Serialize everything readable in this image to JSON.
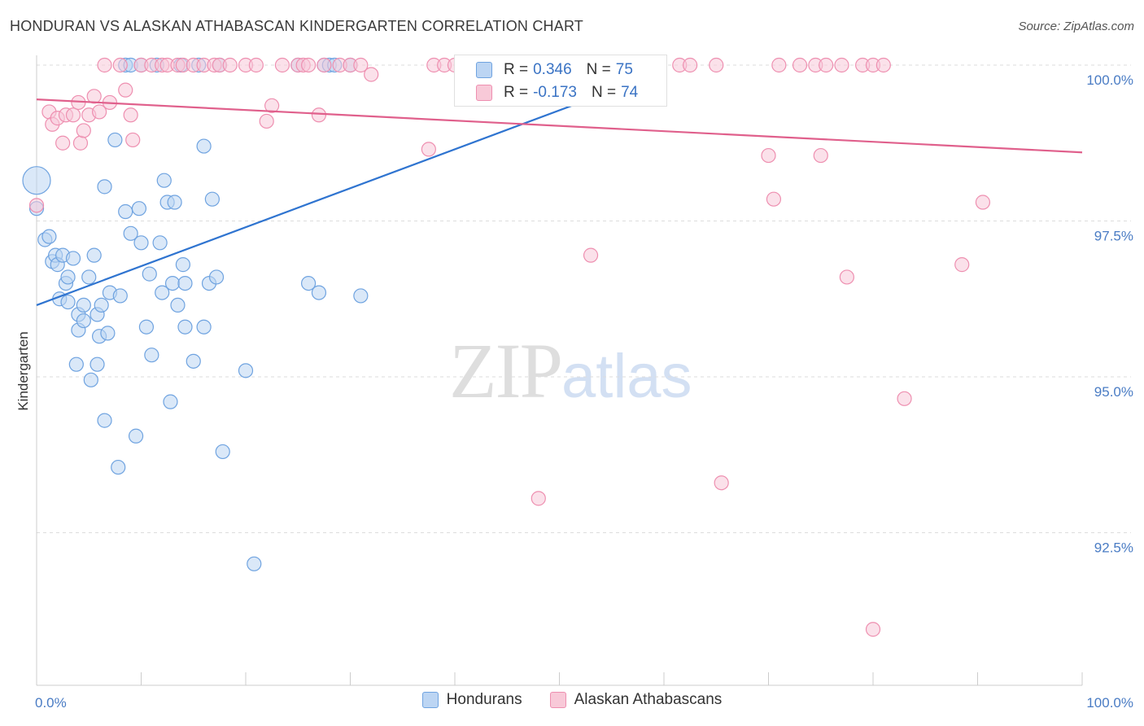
{
  "title": "HONDURAN VS ALASKAN ATHABASCAN KINDERGARTEN CORRELATION CHART",
  "source": "Source: ZipAtlas.com",
  "watermark": {
    "zip": "ZIP",
    "atlas": "atlas"
  },
  "colors": {
    "blue": "#6fa3e0",
    "blue_fill": "#bcd5f3",
    "pink": "#ee8fb0",
    "pink_fill": "#f8c9d8",
    "blue_line": "#2f74d0",
    "pink_line": "#e0608c",
    "grid": "#dddddd",
    "tick": "#4a7cc4"
  },
  "legend": {
    "r_label": "R =",
    "n_label": "N =",
    "series": [
      {
        "r": "0.346",
        "n": "75"
      },
      {
        "r": "-0.173",
        "n": "74"
      }
    ]
  },
  "chart_data": {
    "type": "scatter",
    "title": "HONDURAN VS ALASKAN ATHABASCAN KINDERGARTEN CORRELATION CHART",
    "xlabel": "",
    "ylabel": "Kindergarten",
    "xlim": [
      0,
      100
    ],
    "ylim": [
      90.3,
      100.4
    ],
    "x_tick_labels": [
      "0.0%",
      "100.0%"
    ],
    "y_ticks": [
      100.0,
      97.5,
      95.0,
      92.5
    ],
    "y_tick_labels": [
      "100.0%",
      "97.5%",
      "95.0%",
      "92.5%"
    ],
    "series": [
      {
        "name": "Hondurans",
        "trend": {
          "x": [
            0,
            60
          ],
          "y": [
            96.15,
            99.9
          ]
        },
        "points": [
          [
            0.0,
            98.15
          ],
          [
            0.0,
            97.7
          ],
          [
            0.8,
            97.2
          ],
          [
            1.2,
            97.25
          ],
          [
            1.5,
            96.85
          ],
          [
            1.8,
            96.95
          ],
          [
            2.0,
            96.8
          ],
          [
            2.2,
            96.25
          ],
          [
            2.5,
            96.95
          ],
          [
            2.8,
            96.5
          ],
          [
            3.0,
            96.6
          ],
          [
            3.0,
            96.2
          ],
          [
            3.5,
            96.9
          ],
          [
            3.8,
            95.2
          ],
          [
            4.0,
            95.75
          ],
          [
            4.0,
            96.0
          ],
          [
            4.5,
            96.15
          ],
          [
            4.5,
            95.9
          ],
          [
            5.0,
            96.6
          ],
          [
            5.2,
            94.95
          ],
          [
            5.5,
            96.95
          ],
          [
            5.8,
            96.0
          ],
          [
            5.8,
            95.2
          ],
          [
            6.0,
            95.65
          ],
          [
            6.2,
            96.15
          ],
          [
            6.5,
            98.05
          ],
          [
            6.5,
            94.3
          ],
          [
            6.8,
            95.7
          ],
          [
            7.0,
            96.35
          ],
          [
            7.5,
            98.8
          ],
          [
            7.8,
            93.55
          ],
          [
            8.0,
            96.3
          ],
          [
            8.5,
            97.65
          ],
          [
            8.5,
            100.0
          ],
          [
            9.0,
            100.0
          ],
          [
            9.0,
            97.3
          ],
          [
            9.5,
            94.05
          ],
          [
            9.8,
            97.7
          ],
          [
            10.0,
            97.15
          ],
          [
            10.0,
            100.0
          ],
          [
            10.5,
            95.8
          ],
          [
            10.8,
            96.65
          ],
          [
            11.0,
            95.35
          ],
          [
            11.5,
            100.0
          ],
          [
            11.8,
            97.15
          ],
          [
            12.0,
            96.35
          ],
          [
            12.2,
            98.15
          ],
          [
            12.5,
            97.8
          ],
          [
            12.8,
            94.6
          ],
          [
            13.0,
            96.5
          ],
          [
            13.2,
            97.8
          ],
          [
            13.5,
            96.15
          ],
          [
            13.8,
            100.0
          ],
          [
            14.0,
            96.8
          ],
          [
            14.2,
            96.5
          ],
          [
            14.2,
            95.8
          ],
          [
            15.0,
            95.25
          ],
          [
            15.5,
            100.0
          ],
          [
            16.0,
            98.7
          ],
          [
            16.0,
            95.8
          ],
          [
            16.5,
            96.5
          ],
          [
            16.8,
            97.85
          ],
          [
            17.2,
            96.6
          ],
          [
            17.5,
            100.0
          ],
          [
            17.8,
            93.8
          ],
          [
            20.0,
            95.1
          ],
          [
            20.8,
            92.0
          ],
          [
            25.0,
            100.0
          ],
          [
            26.0,
            96.5
          ],
          [
            27.0,
            96.35
          ],
          [
            27.5,
            100.0
          ],
          [
            28.0,
            100.0
          ],
          [
            28.5,
            100.0
          ],
          [
            30.0,
            100.0
          ],
          [
            31.0,
            96.3
          ]
        ]
      },
      {
        "name": "Alaskan Athabascans",
        "trend": {
          "x": [
            0,
            100
          ],
          "y": [
            99.45,
            98.6
          ]
        },
        "points": [
          [
            0.0,
            97.75
          ],
          [
            1.2,
            99.25
          ],
          [
            1.5,
            99.05
          ],
          [
            2.0,
            99.15
          ],
          [
            2.5,
            98.75
          ],
          [
            2.8,
            99.2
          ],
          [
            3.5,
            99.2
          ],
          [
            4.0,
            99.4
          ],
          [
            4.2,
            98.75
          ],
          [
            4.5,
            98.95
          ],
          [
            5.0,
            99.2
          ],
          [
            5.5,
            99.5
          ],
          [
            6.0,
            99.25
          ],
          [
            6.5,
            100.0
          ],
          [
            7.0,
            99.4
          ],
          [
            8.0,
            100.0
          ],
          [
            8.5,
            99.6
          ],
          [
            9.0,
            99.2
          ],
          [
            9.2,
            98.8
          ],
          [
            10.0,
            100.0
          ],
          [
            11.0,
            100.0
          ],
          [
            12.0,
            100.0
          ],
          [
            12.5,
            100.0
          ],
          [
            13.5,
            100.0
          ],
          [
            14.0,
            100.0
          ],
          [
            15.0,
            100.0
          ],
          [
            16.0,
            100.0
          ],
          [
            17.0,
            100.0
          ],
          [
            17.5,
            100.0
          ],
          [
            18.5,
            100.0
          ],
          [
            20.0,
            100.0
          ],
          [
            21.0,
            100.0
          ],
          [
            22.0,
            99.1
          ],
          [
            22.5,
            99.35
          ],
          [
            23.5,
            100.0
          ],
          [
            25.0,
            100.0
          ],
          [
            25.5,
            100.0
          ],
          [
            26.0,
            100.0
          ],
          [
            27.0,
            99.2
          ],
          [
            27.5,
            100.0
          ],
          [
            29.0,
            100.0
          ],
          [
            30.0,
            100.0
          ],
          [
            31.0,
            100.0
          ],
          [
            32.0,
            99.85
          ],
          [
            37.5,
            98.65
          ],
          [
            38.0,
            100.0
          ],
          [
            39.0,
            100.0
          ],
          [
            40.0,
            100.0
          ],
          [
            41.0,
            100.0
          ],
          [
            48.0,
            93.05
          ],
          [
            50.0,
            100.0
          ],
          [
            53.0,
            96.95
          ],
          [
            54.0,
            100.0
          ],
          [
            58.0,
            100.0
          ],
          [
            61.5,
            100.0
          ],
          [
            62.5,
            100.0
          ],
          [
            65.0,
            100.0
          ],
          [
            65.5,
            93.3
          ],
          [
            70.0,
            98.55
          ],
          [
            70.5,
            97.85
          ],
          [
            71.0,
            100.0
          ],
          [
            73.0,
            100.0
          ],
          [
            74.5,
            100.0
          ],
          [
            75.0,
            98.55
          ],
          [
            75.5,
            100.0
          ],
          [
            77.0,
            100.0
          ],
          [
            77.5,
            96.6
          ],
          [
            79.0,
            100.0
          ],
          [
            80.0,
            100.0
          ],
          [
            80.0,
            90.95
          ],
          [
            81.0,
            100.0
          ],
          [
            83.0,
            94.65
          ],
          [
            88.5,
            96.8
          ],
          [
            90.5,
            97.8
          ]
        ]
      }
    ]
  }
}
